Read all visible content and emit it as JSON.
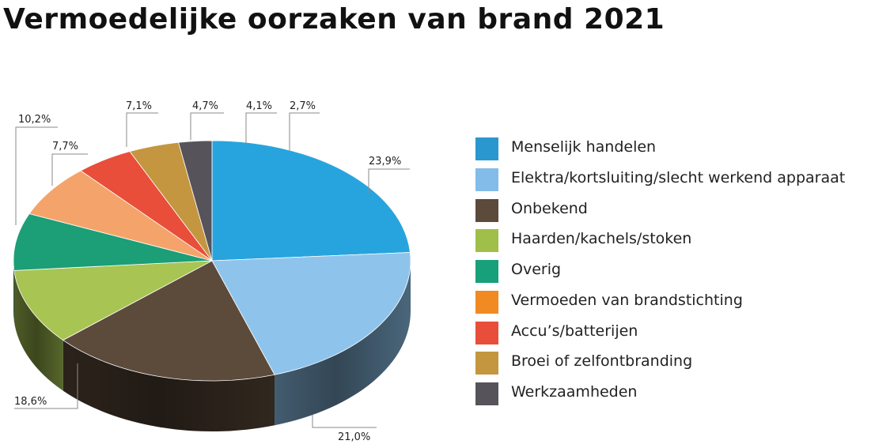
{
  "title": "Vermoedelijke oorzaken van brand 2021",
  "chart_data": {
    "type": "pie",
    "title": "Vermoedelijke oorzaken van brand 2021",
    "three_d": true,
    "legend_position": "right",
    "slices": [
      {
        "label": "Menselijk handelen",
        "value": 23.9,
        "value_label": "23,9%",
        "color": "#27a4dd"
      },
      {
        "label": "Elektra/kortsluiting/slecht werkend apparaat",
        "value": 21.0,
        "value_label": "21,0%",
        "color": "#8ec4ec"
      },
      {
        "label": "Onbekend",
        "value": 18.6,
        "value_label": "18,6%",
        "color": "#5c4a3b"
      },
      {
        "label": "Haarden/kachels/stoken",
        "value": 10.2,
        "value_label": "10,2%",
        "color": "#a8c452"
      },
      {
        "label": "Overig",
        "value": 7.7,
        "value_label": "7,7%",
        "color": "#1c9e76"
      },
      {
        "label": "Vermoeden van brandstichting",
        "value": 7.1,
        "value_label": "7,1%",
        "color": "#f4a46a"
      },
      {
        "label": "Accu’s/batterijen",
        "value": 4.7,
        "value_label": "4,7%",
        "color": "#e84e3a"
      },
      {
        "label": "Broei of zelfontbranding",
        "value": 4.1,
        "value_label": "4,1%",
        "color": "#c49640"
      },
      {
        "label": "Werkzaamheden",
        "value": 2.7,
        "value_label": "2,7%",
        "color": "#56545a"
      }
    ],
    "legend": [
      {
        "label": "Menselijk handelen",
        "color": "#2a97cf"
      },
      {
        "label": "Elektra/kortsluiting/slecht werkend apparaat",
        "color": "#83bce8"
      },
      {
        "label": "Onbekend",
        "color": "#5c4a3b"
      },
      {
        "label": "Haarden/kachels/stoken",
        "color": "#9fbf4a"
      },
      {
        "label": "Overig",
        "color": "#18a07a"
      },
      {
        "label": "Vermoeden van brandstichting",
        "color": "#f18a22"
      },
      {
        "label": "Accu’s/batterijen",
        "color": "#e84e3a"
      },
      {
        "label": "Broei of zelfontbranding",
        "color": "#c49640"
      },
      {
        "label": "Werkzaamheden",
        "color": "#56545a"
      }
    ]
  }
}
